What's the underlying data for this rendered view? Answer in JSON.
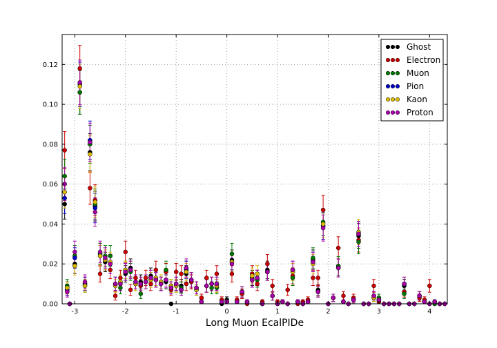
{
  "chart_data": {
    "type": "scatter",
    "title": "",
    "xlabel": "Long Muon EcalPIDe",
    "ylabel": "",
    "xlim": [
      -3.25,
      4.35
    ],
    "ylim": [
      0.0,
      0.135
    ],
    "xticks": [
      -3,
      -2,
      -1,
      0,
      1,
      2,
      3,
      4
    ],
    "yticks": [
      0.0,
      0.02,
      0.04,
      0.06,
      0.08,
      0.1,
      0.12
    ],
    "ytick_labels": [
      "0.00",
      "0.02",
      "0.04",
      "0.06",
      "0.08",
      "0.10",
      "0.12"
    ],
    "grid": true,
    "legend_position": "top-right",
    "x": [
      -3.2,
      -3.15,
      -3.1,
      -3.0,
      -2.9,
      -2.8,
      -2.7,
      -2.6,
      -2.5,
      -2.4,
      -2.3,
      -2.2,
      -2.1,
      -2.0,
      -1.9,
      -1.8,
      -1.7,
      -1.6,
      -1.5,
      -1.4,
      -1.3,
      -1.2,
      -1.1,
      -1.0,
      -0.9,
      -0.8,
      -0.7,
      -0.6,
      -0.5,
      -0.4,
      -0.3,
      -0.2,
      -0.1,
      0.0,
      0.1,
      0.2,
      0.3,
      0.4,
      0.5,
      0.6,
      0.7,
      0.8,
      0.9,
      1.0,
      1.1,
      1.2,
      1.3,
      1.4,
      1.5,
      1.6,
      1.7,
      1.8,
      1.9,
      2.0,
      2.1,
      2.2,
      2.3,
      2.4,
      2.5,
      2.6,
      2.7,
      2.8,
      2.9,
      3.0,
      3.1,
      3.2,
      3.3,
      3.4,
      3.5,
      3.6,
      3.7,
      3.8,
      3.9,
      4.0,
      4.1,
      4.2,
      4.3
    ],
    "series": [
      {
        "name": "Ghost",
        "color": "#000000",
        "values": [
          0.05,
          0.008,
          0.0,
          0.02,
          0.106,
          0.01,
          0.076,
          0.049,
          0.025,
          0.021,
          0.02,
          0.01,
          0.011,
          0.015,
          0.018,
          0.011,
          0.011,
          0.011,
          0.014,
          0.012,
          0.011,
          0.011,
          0.0,
          0.01,
          0.009,
          0.015,
          0.011,
          0.008,
          0.001,
          0.009,
          0.01,
          0.009,
          0.0,
          0.002,
          0.022,
          0.001,
          0.005,
          0.001,
          0.013,
          0.013,
          0.0,
          0.017,
          0.004,
          0.0,
          0.001,
          0.0,
          0.016,
          0.001,
          0.0,
          0.001,
          0.022,
          0.007,
          0.039,
          0.0,
          0.003,
          0.018,
          0.001,
          0.0,
          0.002,
          0.034,
          0.0,
          0.0,
          0.003,
          0.002,
          0.0,
          0.0,
          0.0,
          0.0,
          0.009,
          0.0,
          0.0,
          0.004,
          0.001,
          0.0,
          0.001,
          0.0,
          0.0
        ]
      },
      {
        "name": "Electron",
        "color": "#cc0000",
        "values": [
          0.077,
          0.007,
          0.0,
          0.019,
          0.118,
          0.01,
          0.058,
          0.052,
          0.015,
          0.022,
          0.017,
          0.004,
          0.013,
          0.026,
          0.007,
          0.013,
          0.009,
          0.013,
          0.01,
          0.017,
          0.01,
          0.016,
          0.007,
          0.016,
          0.015,
          0.01,
          0.011,
          0.008,
          0.003,
          0.013,
          0.01,
          0.015,
          0.002,
          0.001,
          0.015,
          0.002,
          0.005,
          0.0,
          0.015,
          0.01,
          0.001,
          0.02,
          0.009,
          0.001,
          0.001,
          0.007,
          0.014,
          0.0,
          0.001,
          0.002,
          0.013,
          0.013,
          0.047,
          0.0,
          0.003,
          0.028,
          0.004,
          0.0,
          0.003,
          0.032,
          0.0,
          0.0,
          0.009,
          0.001,
          0.0,
          0.0,
          0.0,
          0.0,
          0.006,
          0.0,
          0.0,
          0.003,
          0.002,
          0.009,
          0.0,
          0.0,
          0.0
        ]
      },
      {
        "name": "Muon",
        "color": "#007700",
        "values": [
          0.064,
          0.009,
          0.0,
          0.024,
          0.106,
          0.009,
          0.08,
          0.05,
          0.025,
          0.024,
          0.024,
          0.01,
          0.008,
          0.017,
          0.016,
          0.01,
          0.005,
          0.011,
          0.012,
          0.013,
          0.01,
          0.017,
          0.009,
          0.009,
          0.008,
          0.017,
          0.012,
          0.007,
          0.001,
          0.009,
          0.008,
          0.008,
          0.001,
          0.001,
          0.025,
          0.001,
          0.006,
          0.001,
          0.012,
          0.012,
          0.0,
          0.016,
          0.004,
          0.0,
          0.001,
          0.0,
          0.013,
          0.001,
          0.0,
          0.001,
          0.023,
          0.006,
          0.041,
          0.0,
          0.003,
          0.019,
          0.001,
          0.0,
          0.002,
          0.031,
          0.0,
          0.0,
          0.003,
          0.003,
          0.0,
          0.0,
          0.0,
          0.0,
          0.005,
          0.0,
          0.0,
          0.004,
          0.001,
          0.0,
          0.0,
          0.0,
          0.0
        ]
      },
      {
        "name": "Pion",
        "color": "#0000cc",
        "values": [
          0.053,
          0.007,
          0.0,
          0.023,
          0.11,
          0.01,
          0.082,
          0.048,
          0.024,
          0.022,
          0.02,
          0.01,
          0.01,
          0.016,
          0.017,
          0.011,
          0.01,
          0.011,
          0.013,
          0.012,
          0.01,
          0.012,
          0.008,
          0.01,
          0.007,
          0.017,
          0.012,
          0.007,
          0.001,
          0.009,
          0.01,
          0.01,
          0.001,
          0.001,
          0.021,
          0.001,
          0.006,
          0.001,
          0.012,
          0.013,
          0.0,
          0.016,
          0.004,
          0.0,
          0.001,
          0.0,
          0.017,
          0.001,
          0.0,
          0.001,
          0.021,
          0.006,
          0.039,
          0.0,
          0.003,
          0.018,
          0.001,
          0.0,
          0.002,
          0.035,
          0.0,
          0.0,
          0.004,
          0.002,
          0.0,
          0.0,
          0.0,
          0.0,
          0.01,
          0.0,
          0.0,
          0.004,
          0.001,
          0.0,
          0.001,
          0.0,
          0.0
        ]
      },
      {
        "name": "Kaon",
        "color": "#ddbb00",
        "values": [
          0.056,
          0.008,
          0.0,
          0.019,
          0.109,
          0.009,
          0.075,
          0.051,
          0.024,
          0.022,
          0.021,
          0.009,
          0.011,
          0.017,
          0.017,
          0.01,
          0.01,
          0.011,
          0.012,
          0.013,
          0.011,
          0.012,
          0.009,
          0.009,
          0.007,
          0.016,
          0.012,
          0.007,
          0.001,
          0.009,
          0.01,
          0.009,
          0.001,
          0.001,
          0.021,
          0.001,
          0.006,
          0.001,
          0.014,
          0.015,
          0.0,
          0.016,
          0.004,
          0.0,
          0.001,
          0.0,
          0.016,
          0.001,
          0.0,
          0.001,
          0.02,
          0.006,
          0.04,
          0.0,
          0.003,
          0.018,
          0.001,
          0.0,
          0.002,
          0.036,
          0.0,
          0.0,
          0.003,
          0.002,
          0.0,
          0.0,
          0.0,
          0.0,
          0.01,
          0.0,
          0.0,
          0.004,
          0.001,
          0.0,
          0.001,
          0.0,
          0.0
        ]
      },
      {
        "name": "Proton",
        "color": "#aa00aa",
        "values": [
          0.06,
          0.006,
          0.0,
          0.026,
          0.111,
          0.011,
          0.081,
          0.046,
          0.026,
          0.023,
          0.02,
          0.01,
          0.01,
          0.016,
          0.017,
          0.011,
          0.01,
          0.011,
          0.013,
          0.012,
          0.01,
          0.012,
          0.008,
          0.01,
          0.007,
          0.018,
          0.012,
          0.008,
          0.001,
          0.009,
          0.01,
          0.01,
          0.001,
          0.001,
          0.02,
          0.001,
          0.006,
          0.001,
          0.012,
          0.013,
          0.0,
          0.016,
          0.004,
          0.0,
          0.001,
          0.0,
          0.017,
          0.001,
          0.0,
          0.001,
          0.021,
          0.006,
          0.038,
          0.0,
          0.003,
          0.018,
          0.001,
          0.0,
          0.002,
          0.035,
          0.0,
          0.0,
          0.004,
          0.002,
          0.0,
          0.0,
          0.0,
          0.0,
          0.01,
          0.0,
          0.0,
          0.004,
          0.001,
          0.0,
          0.001,
          0.0,
          0.0
        ]
      }
    ]
  }
}
